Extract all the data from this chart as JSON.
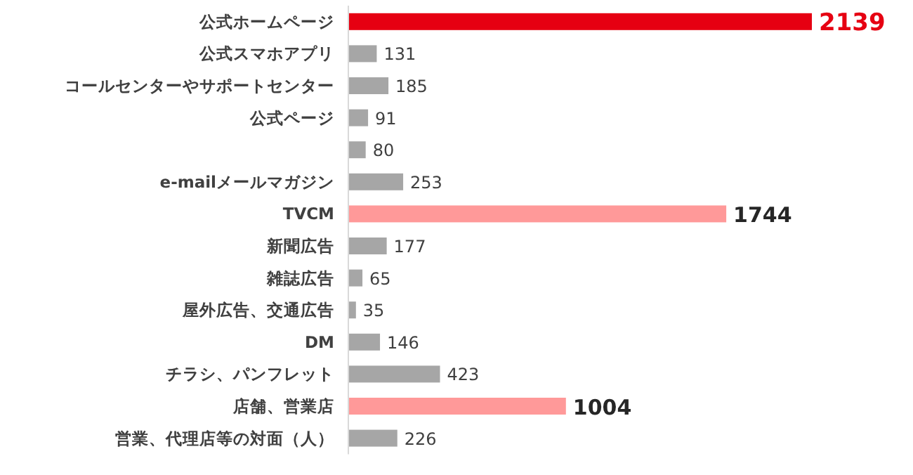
{
  "chart_data": {
    "type": "bar",
    "orientation": "horizontal",
    "categories": [
      "公式ホームページ",
      "公式スマホアプリ",
      "コールセンターやサポートセンター",
      "公式ページ",
      null,
      "e-mailメールマガジン",
      "TVCM",
      "新聞広告",
      "雑誌広告",
      "屋外広告、交通広告",
      "DM",
      "チラシ、パンフレット",
      "店舗、営業店",
      "営業、代理店等の対面（人）"
    ],
    "values": [
      2139,
      131,
      185,
      91,
      80,
      253,
      1744,
      177,
      65,
      35,
      146,
      423,
      1004,
      226
    ],
    "colors": [
      "#e60012",
      "#a6a6a6",
      "#a6a6a6",
      "#a6a6a6",
      "#a6a6a6",
      "#a6a6a6",
      "#ff9999",
      "#a6a6a6",
      "#a6a6a6",
      "#a6a6a6",
      "#a6a6a6",
      "#a6a6a6",
      "#ff9999",
      "#a6a6a6"
    ],
    "data_labels": true
  }
}
